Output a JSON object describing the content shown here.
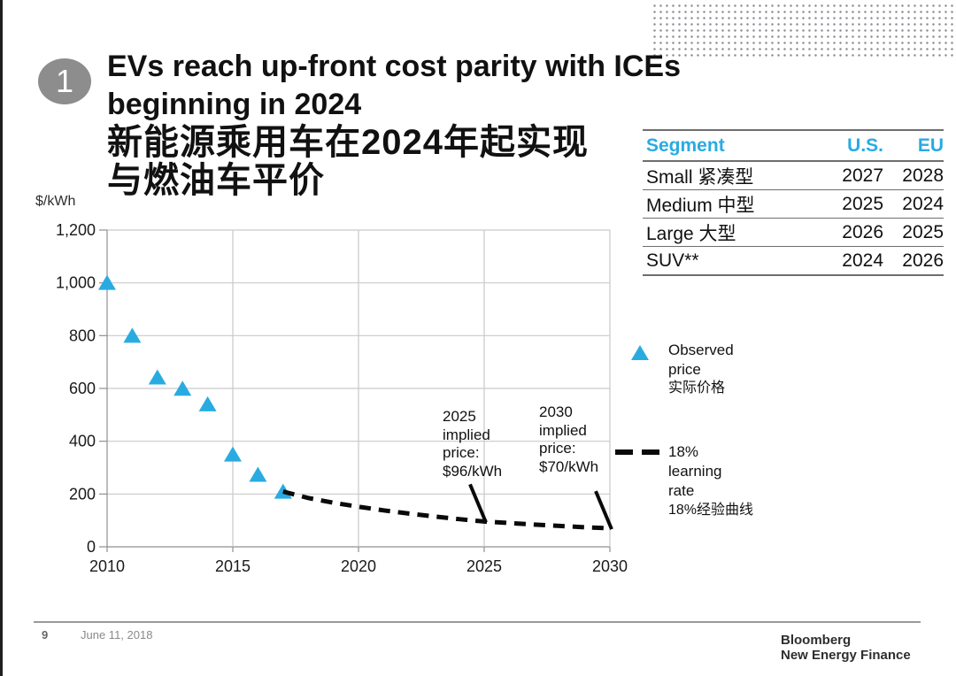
{
  "slide": {
    "badge": "1",
    "title_lines": [
      "EVs reach up-front cost parity with ICEs",
      "beginning in 2024",
      "新能源乘用车在2024年起实现",
      "与燃油车平价"
    ]
  },
  "table": {
    "headers": [
      "Segment",
      "U.S.",
      "EU"
    ],
    "rows": [
      {
        "segment": "Small 紧凑型",
        "us": "2027",
        "eu": "2028"
      },
      {
        "segment": "Medium 中型",
        "us": "2025",
        "eu": "2024"
      },
      {
        "segment": "Large 大型",
        "us": "2026",
        "eu": "2025"
      },
      {
        "segment": "SUV**",
        "us": "2024",
        "eu": "2026"
      }
    ],
    "header_color": "#29abe2"
  },
  "chart_data": {
    "type": "scatter",
    "ylabel": "$/kWh",
    "xlim": [
      2010,
      2030
    ],
    "ylim": [
      0,
      1200
    ],
    "grid": true,
    "x_ticks": [
      {
        "value": 2010,
        "label": "2010"
      },
      {
        "value": 2015,
        "label": "2015"
      },
      {
        "value": 2020,
        "label": "2020"
      },
      {
        "value": 2025,
        "label": "2025"
      },
      {
        "value": 2030,
        "label": "2030"
      }
    ],
    "y_ticks": [
      {
        "value": 0,
        "label": "0"
      },
      {
        "value": 200,
        "label": "200"
      },
      {
        "value": 400,
        "label": "400"
      },
      {
        "value": 600,
        "label": "600"
      },
      {
        "value": 800,
        "label": "800"
      },
      {
        "value": 1000,
        "label": "1,000"
      },
      {
        "value": 1200,
        "label": "1,200"
      }
    ],
    "series": [
      {
        "name": "Observed price",
        "name_cn": "实际价格",
        "type": "scatter",
        "marker": "triangle",
        "color": "#29abe2",
        "points": [
          {
            "x": 2010,
            "y": 1000
          },
          {
            "x": 2011,
            "y": 800
          },
          {
            "x": 2012,
            "y": 642
          },
          {
            "x": 2013,
            "y": 599
          },
          {
            "x": 2014,
            "y": 540
          },
          {
            "x": 2015,
            "y": 350
          },
          {
            "x": 2016,
            "y": 273
          },
          {
            "x": 2017,
            "y": 209
          }
        ]
      },
      {
        "name": "18% learning rate",
        "name_cn": "18%经验曲线",
        "type": "line",
        "style": "dashed",
        "color": "#0a0a0a",
        "points": [
          {
            "x": 2017,
            "y": 209
          },
          {
            "x": 2018,
            "y": 185
          },
          {
            "x": 2019,
            "y": 167
          },
          {
            "x": 2020,
            "y": 152
          },
          {
            "x": 2021,
            "y": 138
          },
          {
            "x": 2022,
            "y": 126
          },
          {
            "x": 2023,
            "y": 115
          },
          {
            "x": 2024,
            "y": 105
          },
          {
            "x": 2025,
            "y": 96
          },
          {
            "x": 2026,
            "y": 90
          },
          {
            "x": 2027,
            "y": 84
          },
          {
            "x": 2028,
            "y": 79
          },
          {
            "x": 2029,
            "y": 74
          },
          {
            "x": 2030,
            "y": 70
          }
        ]
      }
    ],
    "annotations": [
      {
        "text": "2025\nimplied\nprice:\n$96/kWh",
        "year": 2025,
        "value": 96
      },
      {
        "text": "2030\nimplied\nprice:\n$70/kWh",
        "year": 2030,
        "value": 70
      }
    ]
  },
  "legend": {
    "observed": {
      "label": "Observed price",
      "label_cn": "实际价格"
    },
    "learning": {
      "label": "18% learning rate",
      "label_cn": "18%经验曲线"
    }
  },
  "footer": {
    "page_number": "9",
    "date": "June 11, 2018",
    "brand_line1": "Bloomberg",
    "brand_line2": "New Energy Finance"
  }
}
